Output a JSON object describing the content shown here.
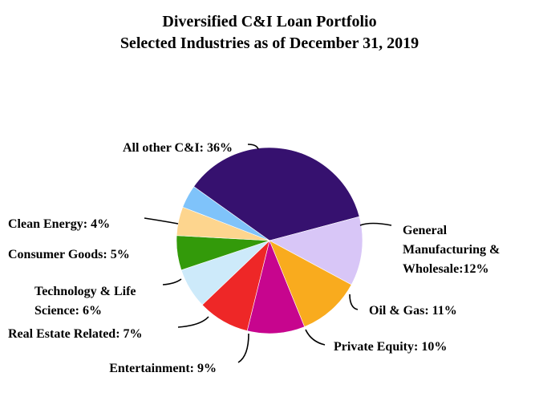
{
  "chart_data": {
    "type": "pie",
    "title": "Diversified C&I Loan Portfolio",
    "subtitle": "Selected Industries as of December 31, 2019",
    "slices": [
      {
        "name": "All other C&I",
        "value": 36,
        "color": "#36116f",
        "label_lines": [
          "All other C&I: 36%"
        ]
      },
      {
        "name": "General Manufacturing & Wholesale",
        "value": 12,
        "color": "#d8c6f7",
        "label_lines": [
          "General",
          "Manufacturing &",
          "Wholesale:12%"
        ]
      },
      {
        "name": "Oil & Gas",
        "value": 11,
        "color": "#f9ab1e",
        "label_lines": [
          "Oil & Gas: 11%"
        ]
      },
      {
        "name": "Private Equity",
        "value": 10,
        "color": "#c7058e",
        "label_lines": [
          "Private Equity: 10%"
        ]
      },
      {
        "name": "Entertainment",
        "value": 9,
        "color": "#ee2727",
        "label_lines": [
          "Entertainment: 9%"
        ]
      },
      {
        "name": "Real Estate Related",
        "value": 7,
        "color": "#cdeafa",
        "label_lines": [
          "Real Estate Related: 7%"
        ]
      },
      {
        "name": "Technology & Life Science",
        "value": 6,
        "color": "#339a0a",
        "label_lines": [
          "Technology & Life",
          "Science: 6%"
        ]
      },
      {
        "name": "Consumer Goods",
        "value": 5,
        "color": "#fdd58e",
        "label_lines": [
          "Consumer Goods: 5%"
        ]
      },
      {
        "name": "Clean Energy",
        "value": 4,
        "color": "#7fc3fa",
        "label_lines": [
          "Clean Energy: 4%"
        ]
      }
    ]
  }
}
